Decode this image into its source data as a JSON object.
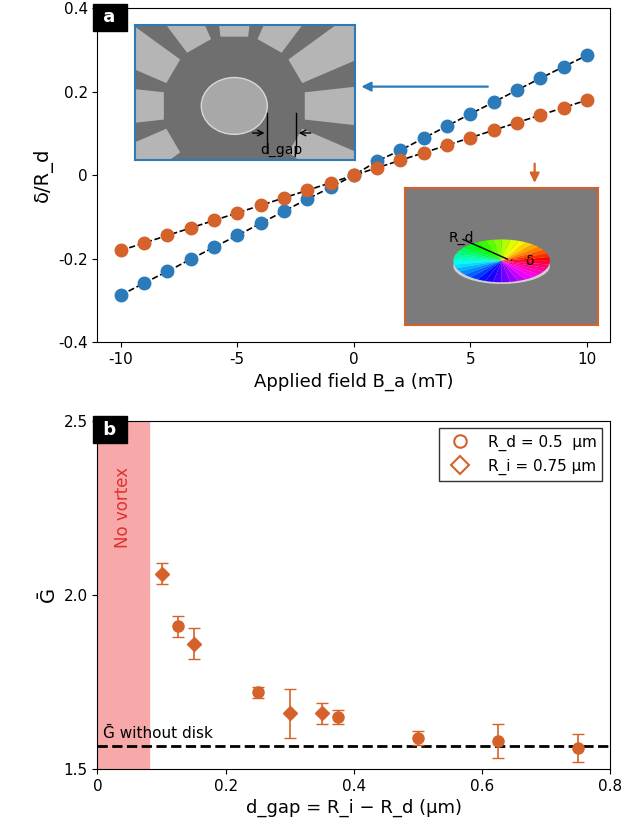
{
  "chart_data": [
    {
      "type": "scatter",
      "panel": "a",
      "x_label": "Applied field B_a (mT)",
      "y_label": "δ/R_d",
      "x": [
        -10,
        -9,
        -8,
        -7,
        -6,
        -5,
        -4,
        -3,
        -2,
        -1,
        0,
        1,
        2,
        3,
        4,
        5,
        6,
        7,
        8,
        9,
        10
      ],
      "series": [
        {
          "color": "#2b7bba",
          "marker": "circle",
          "line_style": "dashed",
          "values": [
            -0.287,
            -0.258,
            -0.23,
            -0.201,
            -0.172,
            -0.144,
            -0.115,
            -0.086,
            -0.057,
            -0.029,
            0.0,
            0.034,
            0.06,
            0.089,
            0.118,
            0.147,
            0.175,
            0.204,
            0.232,
            0.26,
            0.287
          ]
        },
        {
          "color": "#d4622a",
          "marker": "circle",
          "line_style": "dashed",
          "values": [
            -0.18,
            -0.162,
            -0.144,
            -0.126,
            -0.108,
            -0.09,
            -0.072,
            -0.054,
            -0.036,
            -0.018,
            0.0,
            0.018,
            0.036,
            0.054,
            0.072,
            0.09,
            0.108,
            0.126,
            0.144,
            0.162,
            0.18
          ]
        }
      ],
      "xlim": [
        -11,
        11
      ],
      "xticks": [
        -10,
        -5,
        0,
        5,
        10
      ],
      "ylim": [
        -0.4,
        0.4
      ],
      "yticks": [
        -0.4,
        -0.2,
        0,
        0.2,
        0.4
      ],
      "insets": [
        {
          "labels": [
            "d_gap"
          ],
          "series": 0
        },
        {
          "labels": [
            "R_d",
            "δ"
          ],
          "series": 1
        }
      ]
    },
    {
      "type": "scatter",
      "panel": "b",
      "x_label": "d_gap = R_i − R_d (μm)",
      "y_label": "Ḡ",
      "legend": "upper right",
      "series": [
        {
          "name": "R_d = 0.5  μm",
          "color": "#d4622a",
          "marker": "circle",
          "x": [
            0.125,
            0.25,
            0.375,
            0.5,
            0.625,
            0.75
          ],
          "values": [
            1.91,
            1.72,
            1.65,
            1.59,
            1.58,
            1.56
          ],
          "errors": [
            0.03,
            0.015,
            0.02,
            0.02,
            0.05,
            0.04
          ]
        },
        {
          "name": "R_i = 0.75 μm",
          "color": "#d4622a",
          "marker": "diamond",
          "x": [
            0.1,
            0.15,
            0.3,
            0.35
          ],
          "values": [
            2.06,
            1.86,
            1.66,
            1.66
          ],
          "errors": [
            0.03,
            0.045,
            0.07,
            0.03
          ]
        }
      ],
      "reference_line": {
        "value": 1.565,
        "label": "Ḡ without disk"
      },
      "shaded_region": {
        "xrange": [
          0,
          0.08
        ],
        "label": "No vortex"
      },
      "xlim": [
        0,
        0.8
      ],
      "xticks": [
        0,
        0.2,
        0.4,
        0.6,
        0.8
      ],
      "ylim": [
        1.5,
        2.5
      ],
      "yticks": [
        1.5,
        2.0,
        2.5
      ]
    }
  ]
}
